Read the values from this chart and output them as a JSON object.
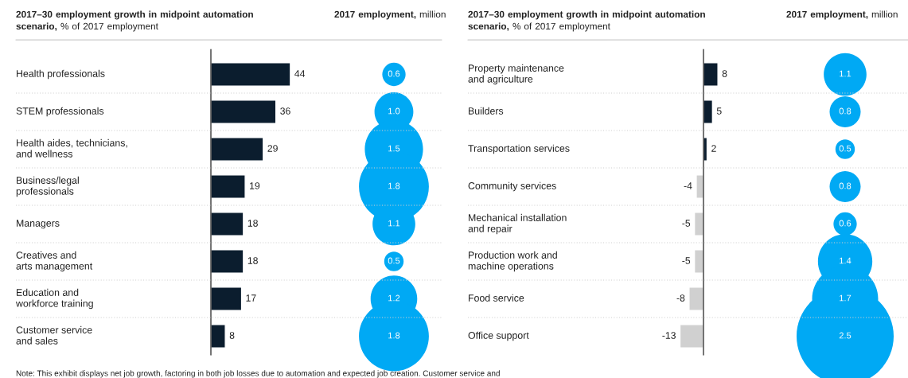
{
  "chart_data": [
    {
      "type": "bar",
      "orientation": "horizontal",
      "title": "2017–30 employment growth in midpoint automation scenario,",
      "subtitle": "% of 2017 employment",
      "categories": [
        "Health professionals",
        "STEM professionals",
        "Health aides, technicians,\nand wellness",
        "Business/legal\nprofessionals",
        "Managers",
        "Creatives and\narts management",
        "Education and\nworkforce training",
        "Customer service\nand sales"
      ],
      "values": [
        44,
        36,
        29,
        19,
        18,
        18,
        17,
        8
      ],
      "colors": [
        "#0b1d2e",
        "#0b1d2e",
        "#0b1d2e",
        "#0b1d2e",
        "#0b1d2e",
        "#0b1d2e",
        "#0b1d2e",
        "#0b1d2e"
      ],
      "data_labels": true,
      "annotations": [
        "Note: This exhibit displays net job growth, factoring in both job losses due to automation and expected job creation. Customer service and"
      ]
    },
    {
      "type": "other",
      "title": "2017 employment,",
      "subtitle": "million",
      "values": [
        0.6,
        1.0,
        1.5,
        1.8,
        1.1,
        0.5,
        1.2,
        1.8
      ],
      "value_labels": [
        "0.6",
        "1.0",
        "1.5",
        "1.8",
        "1.1",
        "0.5",
        "1.2",
        "1.8"
      ],
      "color": "#00a9f4"
    },
    {
      "type": "bar",
      "orientation": "horizontal",
      "title": "2017–30 employment growth in midpoint automation scenario,",
      "subtitle": "% of 2017 employment",
      "categories": [
        "Property maintenance\nand agriculture",
        "Builders",
        "Transportation services",
        "Community services",
        "Mechanical installation\nand repair",
        "Production work and\nmachine operations",
        "Food service",
        "Office support"
      ],
      "values": [
        8,
        5,
        2,
        -4,
        -5,
        -5,
        -8,
        -13
      ],
      "colors": [
        "#0b1d2e",
        "#0b1d2e",
        "#0b1d2e",
        "#d0d0d0",
        "#d0d0d0",
        "#d0d0d0",
        "#d0d0d0",
        "#d0d0d0"
      ],
      "data_labels": true
    },
    {
      "type": "other",
      "title": "2017 employment,",
      "subtitle": "million",
      "values": [
        1.1,
        0.8,
        0.5,
        0.8,
        0.6,
        1.4,
        1.7,
        2.5
      ],
      "value_labels": [
        "1.1",
        "0.8",
        "0.5",
        "0.8",
        "0.6",
        "1.4",
        "1.7",
        "2.5"
      ],
      "color": "#00a9f4"
    }
  ]
}
